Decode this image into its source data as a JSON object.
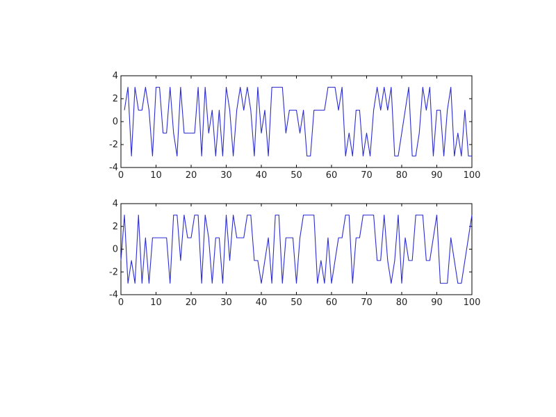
{
  "chart_data": [
    {
      "type": "line",
      "title": "",
      "xlabel": "",
      "ylabel": "",
      "xlim": [
        0,
        100
      ],
      "ylim": [
        -4,
        4
      ],
      "xticks": [
        0,
        10,
        20,
        30,
        40,
        50,
        60,
        70,
        80,
        90,
        100
      ],
      "yticks": [
        -4,
        -2,
        0,
        2,
        4
      ],
      "grid": false,
      "line_color": "#2b2bd0",
      "series": [
        {
          "x": [
            1,
            2,
            3,
            4,
            5,
            6,
            7,
            8,
            9,
            10,
            11,
            12,
            13,
            14,
            15,
            16,
            17,
            18,
            19,
            20,
            21,
            22,
            23,
            24,
            25,
            26,
            27,
            28,
            29,
            30,
            31,
            32,
            33,
            34,
            35,
            36,
            37,
            38,
            39,
            40,
            41,
            42,
            43,
            44,
            45,
            46,
            47,
            48,
            49,
            50,
            51,
            52,
            53,
            54,
            55,
            56,
            57,
            58,
            59,
            60,
            61,
            62,
            63,
            64,
            65,
            66,
            67,
            68,
            69,
            70,
            71,
            72,
            73,
            74,
            75,
            76,
            77,
            78,
            79,
            80,
            81,
            82,
            83,
            84,
            85,
            86,
            87,
            88,
            89,
            90,
            91,
            92,
            93,
            94,
            95,
            96,
            97,
            98,
            99,
            100
          ],
          "values": [
            1,
            3,
            -3,
            3,
            1,
            1,
            3,
            1,
            -3,
            3,
            3,
            -1,
            -1,
            3,
            -1,
            -3,
            3,
            -1,
            -1,
            -1,
            -1,
            3,
            -3,
            3,
            -1,
            1,
            -3,
            1,
            -3,
            3,
            1,
            -3,
            1,
            3,
            1,
            3,
            1,
            -3,
            3,
            -1,
            1,
            -3,
            3,
            3,
            3,
            3,
            -1,
            1,
            1,
            1,
            -1,
            1,
            -3,
            -3,
            1,
            1,
            1,
            1,
            3,
            3,
            3,
            1,
            3,
            -3,
            -1,
            -3,
            1,
            1,
            -3,
            -1,
            -3,
            1,
            3,
            1,
            3,
            1,
            3,
            -3,
            -3,
            -1,
            1,
            3,
            -3,
            -3,
            -1,
            3,
            1,
            3,
            -3,
            1,
            1,
            -3,
            1,
            3,
            -3,
            -1,
            -3,
            1,
            -3,
            -3
          ]
        }
      ]
    },
    {
      "type": "line",
      "title": "",
      "xlabel": "",
      "ylabel": "",
      "xlim": [
        0,
        100
      ],
      "ylim": [
        -4,
        4
      ],
      "xticks": [
        0,
        10,
        20,
        30,
        40,
        50,
        60,
        70,
        80,
        90,
        100
      ],
      "yticks": [
        -4,
        -2,
        0,
        2,
        4
      ],
      "grid": false,
      "line_color": "#2b2bd0",
      "series": [
        {
          "x": [
            0,
            1,
            2,
            3,
            4,
            5,
            6,
            7,
            8,
            9,
            10,
            11,
            12,
            13,
            14,
            15,
            16,
            17,
            18,
            19,
            20,
            21,
            22,
            23,
            24,
            25,
            26,
            27,
            28,
            29,
            30,
            31,
            32,
            33,
            34,
            35,
            36,
            37,
            38,
            39,
            40,
            41,
            42,
            43,
            44,
            45,
            46,
            47,
            48,
            49,
            50,
            51,
            52,
            53,
            54,
            55,
            56,
            57,
            58,
            59,
            60,
            61,
            62,
            63,
            64,
            65,
            66,
            67,
            68,
            69,
            70,
            71,
            72,
            73,
            74,
            75,
            76,
            77,
            78,
            79,
            80,
            81,
            82,
            83,
            84,
            85,
            86,
            87,
            88,
            89,
            90,
            91,
            92,
            93,
            94,
            95,
            96,
            97,
            98,
            99,
            100
          ],
          "values": [
            -1,
            3,
            -3,
            -1,
            -3,
            3,
            -3,
            1,
            -3,
            1,
            1,
            1,
            1,
            1,
            -3,
            3,
            3,
            -1,
            3,
            1,
            1,
            3,
            3,
            -3,
            3,
            1,
            -3,
            1,
            1,
            -3,
            3,
            -1,
            3,
            1,
            1,
            1,
            3,
            3,
            -1,
            -1,
            -3,
            -1,
            1,
            -3,
            3,
            3,
            -3,
            1,
            1,
            1,
            -3,
            1,
            3,
            3,
            3,
            3,
            -3,
            -1,
            -3,
            1,
            -3,
            -1,
            1,
            1,
            3,
            3,
            -3,
            1,
            1,
            3,
            3,
            3,
            3,
            -1,
            -1,
            3,
            -1,
            -3,
            -1,
            3,
            -3,
            1,
            -1,
            -1,
            3,
            3,
            3,
            -1,
            -1,
            1,
            3,
            -3,
            -3,
            -3,
            1,
            -1,
            -3,
            -3,
            -1,
            1,
            3
          ]
        }
      ]
    }
  ]
}
